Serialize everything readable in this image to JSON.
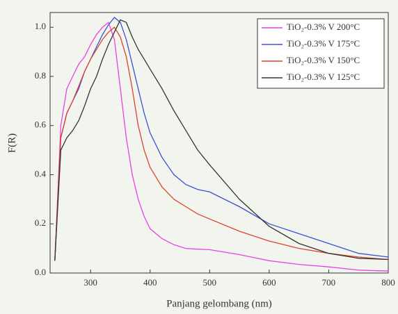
{
  "chart_data": {
    "type": "line",
    "x_label": "Panjang gelombang (nm)",
    "y_label": "F(R)",
    "x": [
      240,
      250,
      260,
      270,
      280,
      290,
      300,
      310,
      320,
      330,
      340,
      350,
      360,
      370,
      380,
      390,
      400,
      420,
      440,
      460,
      480,
      500,
      550,
      600,
      650,
      700,
      750,
      800
    ],
    "series": [
      {
        "name": "TiO₂-0.3% V 200°C",
        "color": "#ee3ee8",
        "values": [
          0.05,
          0.6,
          0.75,
          0.8,
          0.85,
          0.88,
          0.93,
          0.97,
          1.0,
          1.02,
          0.95,
          0.75,
          0.55,
          0.4,
          0.3,
          0.23,
          0.18,
          0.14,
          0.115,
          0.1,
          0.097,
          0.095,
          0.075,
          0.05,
          0.035,
          0.025,
          0.012,
          0.008
        ]
      },
      {
        "name": "TiO₂-0.3% V 175°C",
        "color": "#3a4fd6",
        "values": [
          0.05,
          0.55,
          0.65,
          0.7,
          0.75,
          0.82,
          0.87,
          0.92,
          0.97,
          1.01,
          1.04,
          1.02,
          0.95,
          0.85,
          0.75,
          0.65,
          0.57,
          0.47,
          0.4,
          0.36,
          0.34,
          0.33,
          0.27,
          0.2,
          0.16,
          0.12,
          0.08,
          0.065
        ]
      },
      {
        "name": "TiO₂-0.3% V 150°C",
        "color": "#e0402e",
        "values": [
          0.05,
          0.55,
          0.65,
          0.7,
          0.76,
          0.82,
          0.87,
          0.91,
          0.95,
          0.98,
          1.0,
          0.96,
          0.88,
          0.75,
          0.6,
          0.5,
          0.43,
          0.35,
          0.3,
          0.27,
          0.24,
          0.22,
          0.17,
          0.13,
          0.1,
          0.08,
          0.065,
          0.055
        ]
      },
      {
        "name": "TiO₂-0.3% V 125°C",
        "color": "#333333",
        "values": [
          0.05,
          0.5,
          0.55,
          0.58,
          0.62,
          0.68,
          0.75,
          0.8,
          0.87,
          0.93,
          0.98,
          1.03,
          1.02,
          0.96,
          0.91,
          0.87,
          0.83,
          0.75,
          0.66,
          0.58,
          0.5,
          0.44,
          0.3,
          0.19,
          0.12,
          0.08,
          0.06,
          0.055
        ]
      }
    ],
    "xlim": [
      232,
      800
    ],
    "ylim": [
      0,
      1.06
    ],
    "xticks": [
      300,
      400,
      500,
      600,
      700,
      800
    ],
    "yticks": [
      {
        "value": 0,
        "label": "0.0"
      },
      0.2,
      0.4,
      0.6,
      0.8,
      {
        "value": 1,
        "label": "1.0"
      }
    ],
    "legend": "upper right"
  }
}
